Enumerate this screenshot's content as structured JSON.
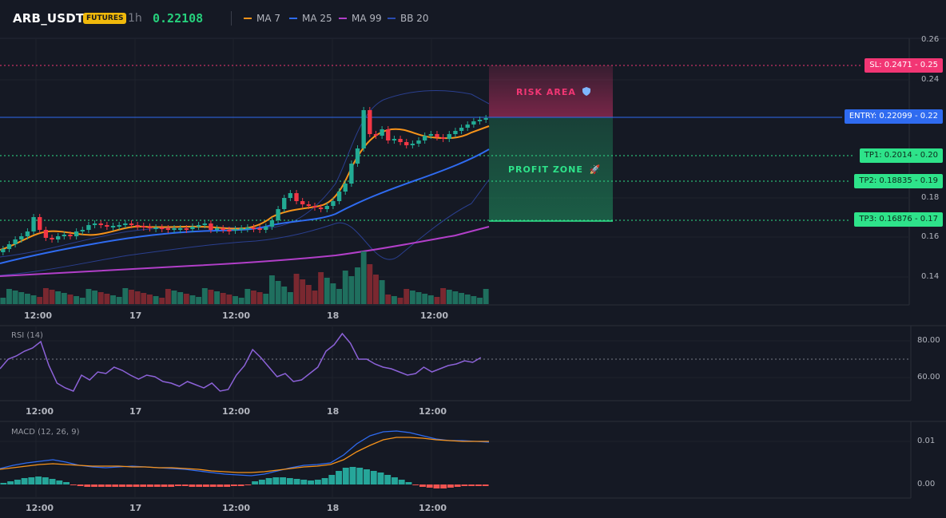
{
  "header": {
    "symbol": "ARB_USDT",
    "market_badge": "FUTURES",
    "timeframe": "1h",
    "last_price": "0.22108",
    "indicators": [
      {
        "name": "MA 7",
        "color": "#f7931a"
      },
      {
        "name": "MA 25",
        "color": "#2f6bf0"
      },
      {
        "name": "MA 99",
        "color": "#b23fc9"
      },
      {
        "name": "BB 20",
        "color": "#2a3f8f"
      }
    ]
  },
  "trade_levels": {
    "sl": "SL: 0.2471",
    "sl_axis": "0.25",
    "entry": "ENTRY: 0.22099",
    "entry_axis": "0.22",
    "tp1": "TP1: 0.2014",
    "tp1_axis": "0.20",
    "tp2": "TP2: 0.18835",
    "tp2_axis": "0.19",
    "tp3": "TP3: 0.16876",
    "tp3_axis": "0.17"
  },
  "zones": {
    "risk_label": "RISK AREA",
    "risk_icon": "shield-icon",
    "profit_label": "PROFIT ZONE",
    "profit_icon": "rocket-icon",
    "risk_color": "#f23674",
    "profit_color": "#2ee38a"
  },
  "price_axis": {
    "ticks": [
      "0.26",
      "0.24",
      "0.18",
      "0.16",
      "0.14"
    ]
  },
  "time_axis": {
    "labels": [
      "12:00",
      "17",
      "12:00",
      "18",
      "12:00"
    ]
  },
  "rsi": {
    "title": "RSI (14)",
    "ticks": [
      "80.00",
      "60.00"
    ]
  },
  "macd": {
    "title": "MACD (12, 26, 9)",
    "ticks": [
      "0.01",
      "0.00"
    ]
  },
  "colors": {
    "up": "#22ab94",
    "down": "#f23645",
    "bg": "#151924"
  }
}
